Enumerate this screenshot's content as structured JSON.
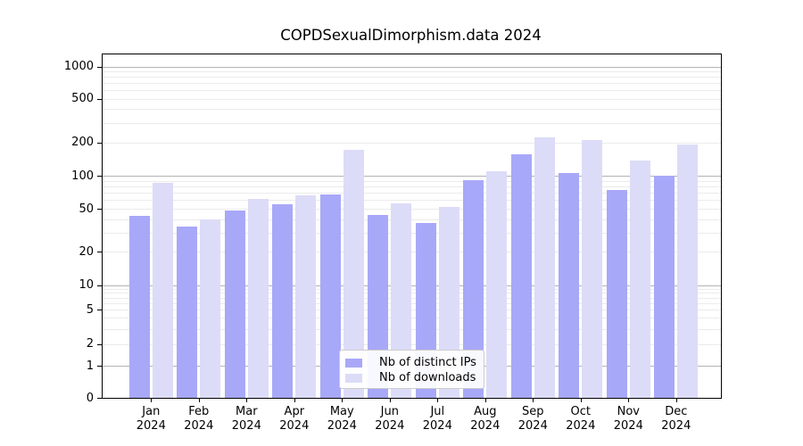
{
  "chart_data": {
    "type": "bar",
    "title": "COPDSexualDimorphism.data 2024",
    "year_label": "2024",
    "categories": [
      "Jan",
      "Feb",
      "Mar",
      "Apr",
      "May",
      "Jun",
      "Jul",
      "Aug",
      "Sep",
      "Oct",
      "Nov",
      "Dec"
    ],
    "series": [
      {
        "name": "Nb of distinct IPs",
        "color": "#a8a8f8",
        "values": [
          43,
          34,
          48,
          55,
          67,
          44,
          37,
          91,
          155,
          106,
          74,
          100
        ]
      },
      {
        "name": "Nb of downloads",
        "color": "#dcdcf8",
        "values": [
          86,
          40,
          62,
          66,
          170,
          56,
          52,
          110,
          222,
          210,
          138,
          191
        ]
      }
    ],
    "y_ticks": [
      0,
      1,
      2,
      5,
      10,
      20,
      50,
      100,
      200,
      500,
      1000
    ],
    "y_scale": "log-like",
    "ylim": [
      0,
      1300
    ],
    "grid": true,
    "legend_position": "bottom-center",
    "colors": {
      "major_grid": "#b3b3b3",
      "minor_grid": "#ebebeb",
      "axis": "#000000"
    }
  }
}
